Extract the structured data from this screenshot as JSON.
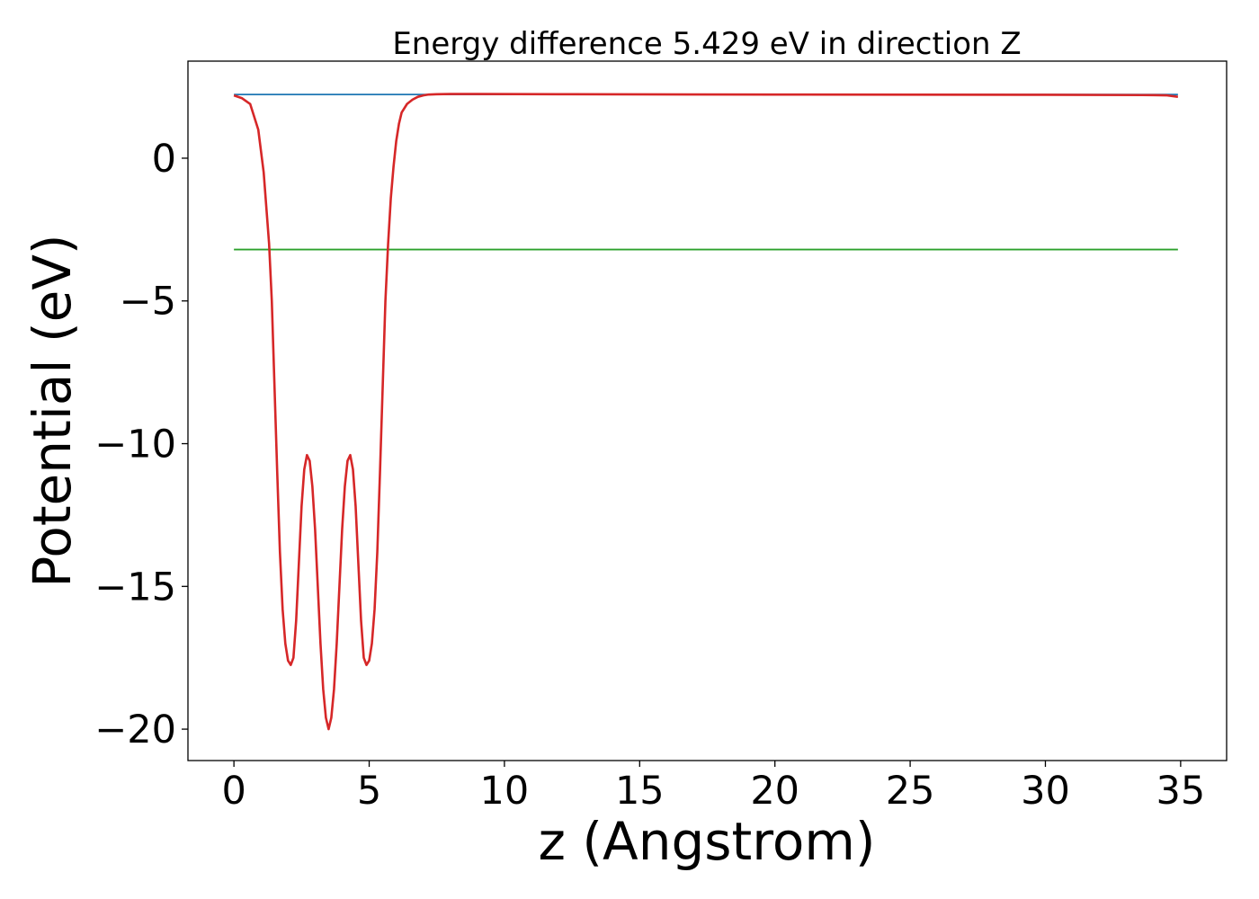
{
  "chart_data": {
    "type": "line",
    "title": "Energy difference 5.429 eV in direction Z",
    "xlabel": "z (Angstrom)",
    "ylabel": "Potential (eV)",
    "xlim": [
      -1.7,
      36.7
    ],
    "ylim": [
      -21.1,
      3.4
    ],
    "xticks": [
      0,
      5,
      10,
      15,
      20,
      25,
      30,
      35
    ],
    "xtick_labels": [
      "0",
      "5",
      "10",
      "15",
      "20",
      "25",
      "30",
      "35"
    ],
    "yticks": [
      0,
      -5,
      -10,
      -15,
      -20
    ],
    "ytick_labels": [
      "0",
      "−5",
      "−10",
      "−15",
      "−20"
    ],
    "grid": false,
    "legend": "none",
    "series": [
      {
        "color": "#1f77b4",
        "x": [
          0,
          34.9
        ],
        "y": [
          2.23,
          2.23
        ]
      },
      {
        "color": "#2ca02c",
        "x": [
          0,
          34.9
        ],
        "y": [
          -3.2,
          -3.2
        ]
      },
      {
        "color": "#d62728",
        "x": [
          0,
          0.3,
          0.6,
          0.9,
          1.1,
          1.3,
          1.4,
          1.5,
          1.6,
          1.7,
          1.8,
          1.9,
          2.0,
          2.1,
          2.2,
          2.3,
          2.4,
          2.5,
          2.6,
          2.7,
          2.8,
          2.9,
          3.0,
          3.1,
          3.2,
          3.3,
          3.4,
          3.5,
          3.6,
          3.7,
          3.8,
          3.9,
          4.0,
          4.1,
          4.2,
          4.3,
          4.4,
          4.5,
          4.6,
          4.7,
          4.8,
          4.9,
          5.0,
          5.1,
          5.2,
          5.3,
          5.4,
          5.5,
          5.6,
          5.7,
          5.8,
          5.9,
          6.0,
          6.1,
          6.2,
          6.4,
          6.6,
          6.8,
          7.0,
          7.2,
          7.5,
          8.0,
          9.0,
          12.0,
          20.0,
          30.0,
          34.0,
          34.5,
          34.9
        ],
        "y": [
          2.2,
          2.1,
          1.9,
          1.0,
          -0.5,
          -3.0,
          -5.0,
          -8.0,
          -11.0,
          -13.8,
          -15.8,
          -17.0,
          -17.6,
          -17.75,
          -17.5,
          -16.2,
          -14.2,
          -12.2,
          -10.9,
          -10.4,
          -10.6,
          -11.5,
          -13.0,
          -15.0,
          -17.0,
          -18.6,
          -19.6,
          -20.0,
          -19.6,
          -18.6,
          -17.0,
          -15.0,
          -13.0,
          -11.5,
          -10.6,
          -10.4,
          -10.9,
          -12.2,
          -14.2,
          -16.2,
          -17.5,
          -17.75,
          -17.6,
          -17.0,
          -15.8,
          -13.8,
          -11.0,
          -8.0,
          -5.0,
          -3.0,
          -1.4,
          -0.3,
          0.6,
          1.2,
          1.6,
          1.9,
          2.05,
          2.15,
          2.2,
          2.23,
          2.24,
          2.25,
          2.25,
          2.24,
          2.23,
          2.22,
          2.21,
          2.2,
          2.15
        ]
      }
    ]
  }
}
